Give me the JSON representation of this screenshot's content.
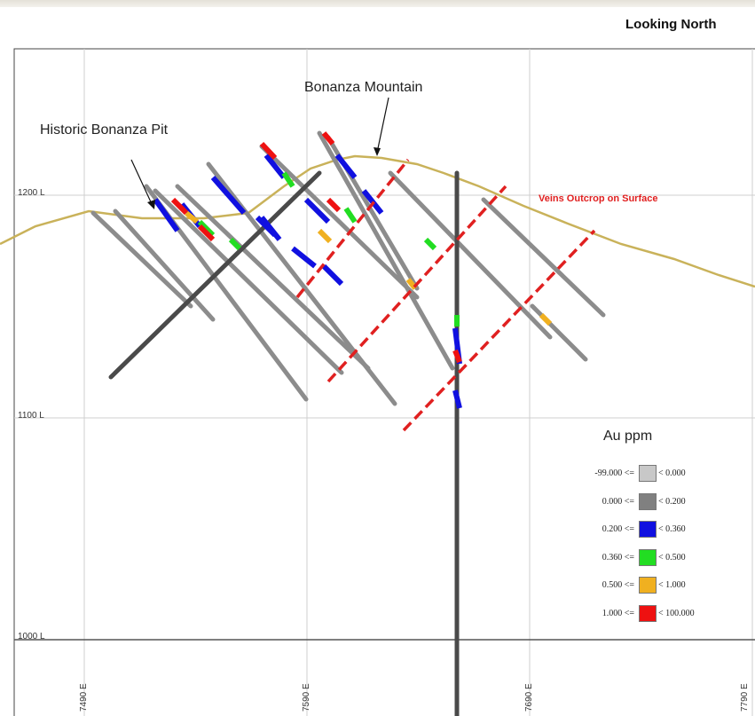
{
  "heading": "Looking North",
  "annotations": {
    "mountain": "Bonanza Mountain",
    "pit": "Historic Bonanza Pit",
    "veins": "Veins Outcrop on Surface"
  },
  "elevation_labels": [
    "1200 L",
    "1100 L",
    "1000 L"
  ],
  "easting_labels": [
    "7490 E",
    "7590 E",
    "7690 E",
    "7790 E"
  ],
  "legend": {
    "title": "Au ppm",
    "rows": [
      {
        "low": "-99.000 <=",
        "high": "< 0.000",
        "color": "#c8c8c8"
      },
      {
        "low": "0.000 <=",
        "high": "< 0.200",
        "color": "#808080"
      },
      {
        "low": "0.200 <=",
        "high": "< 0.360",
        "color": "#1010e0"
      },
      {
        "low": "0.360 <=",
        "high": "< 0.500",
        "color": "#22dd22"
      },
      {
        "low": "0.500 <=",
        "high": "< 1.000",
        "color": "#f0b020"
      },
      {
        "low": "1.000 <=",
        "high": "< 100.000",
        "color": "#ee1111"
      }
    ]
  },
  "colors": {
    "topography": "#c9b25a",
    "vein": "#e02020",
    "drillhole": "#8c8c8c",
    "grid": "#c8c8c8"
  }
}
